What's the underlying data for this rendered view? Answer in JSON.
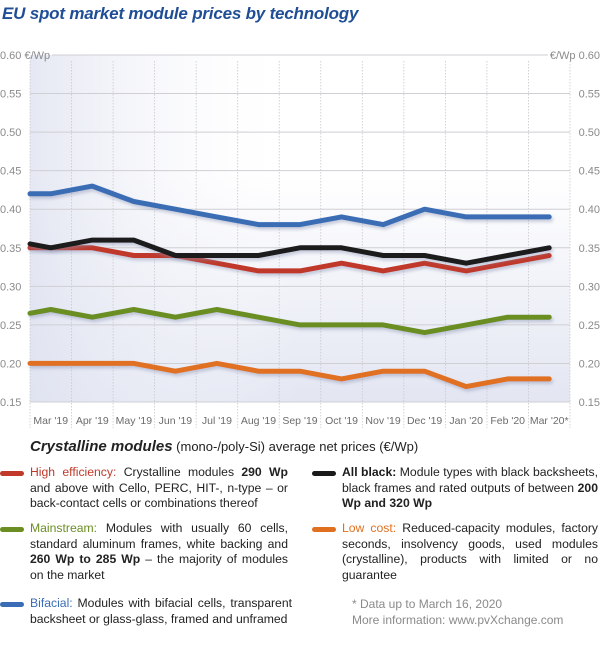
{
  "title": "EU spot market module prices  by technology",
  "chart_data": {
    "type": "line",
    "title": "EU spot market module prices  by technology",
    "xlabel": "",
    "ylabel": "€/Wp",
    "y_unit_left": "€/Wp",
    "y_unit_right": "€/Wp",
    "ylim": [
      0.15,
      0.6
    ],
    "yticks": [
      "0.60",
      "0.55",
      "0.50",
      "0.45",
      "0.40",
      "0.35",
      "0.30",
      "0.25",
      "0.20",
      "0.15"
    ],
    "grid": true,
    "categories": [
      "Mar '19",
      "Apr '19",
      "May '19",
      "Jun '19",
      "Jul '19",
      "Aug '19",
      "Sep '19",
      "Oct '19",
      "Nov '19",
      "Dec '19",
      "Jan '20",
      "Feb '20",
      "Mar '20*"
    ],
    "start_values_note": "line segment from left axis edge",
    "series": [
      {
        "name": "Bifacial",
        "color": "#3a6db5",
        "start": 0.42,
        "values": [
          0.42,
          0.43,
          0.41,
          0.4,
          0.39,
          0.38,
          0.38,
          0.39,
          0.38,
          0.4,
          0.39,
          0.39,
          0.39
        ]
      },
      {
        "name": "All black",
        "color": "#1a1a1a",
        "start": 0.355,
        "values": [
          0.35,
          0.36,
          0.36,
          0.34,
          0.34,
          0.34,
          0.35,
          0.35,
          0.34,
          0.34,
          0.33,
          0.34,
          0.35
        ]
      },
      {
        "name": "High efficiency",
        "color": "#c0392b",
        "start": 0.35,
        "values": [
          0.35,
          0.35,
          0.34,
          0.34,
          0.33,
          0.32,
          0.32,
          0.33,
          0.32,
          0.33,
          0.32,
          0.33,
          0.34
        ]
      },
      {
        "name": "Mainstream",
        "color": "#6b8e23",
        "start": 0.265,
        "values": [
          0.27,
          0.26,
          0.27,
          0.26,
          0.27,
          0.26,
          0.25,
          0.25,
          0.25,
          0.24,
          0.25,
          0.26,
          0.26
        ]
      },
      {
        "name": "Low cost",
        "color": "#e07020",
        "start": 0.2,
        "values": [
          0.2,
          0.2,
          0.2,
          0.19,
          0.2,
          0.19,
          0.19,
          0.18,
          0.19,
          0.19,
          0.17,
          0.18,
          0.18
        ]
      }
    ]
  },
  "legend": {
    "heading_strong": "Crystalline modules",
    "heading_rest": " (mono-/poly-Si) average net prices (€/Wp)",
    "items": [
      {
        "name": "High efficiency:",
        "color": "#c0392b",
        "text_a": " Crystalline modules ",
        "bold": "290 Wp",
        "text_b": " and above with Cello, PERC, HIT-, n-type – or back-contact cells or combinations thereof"
      },
      {
        "name": "Mainstream:",
        "color": "#6b8e23",
        "text_a": " Modules with usually 60 cells, standard aluminum frames, white backing and ",
        "bold": "260 Wp to 285 Wp",
        "text_b": " – the majority of modules on the market"
      },
      {
        "name": "Bifacial:",
        "color": "#3a6db5",
        "text_a": " Modules with bifacial cells, transparent backsheet or glass-glass, framed and unframed",
        "bold": "",
        "text_b": ""
      },
      {
        "name": "All black:",
        "color": "#1a1a1a",
        "text_a": " Module types with black backsheets, black frames and rated outputs of between ",
        "bold": "200 Wp and 320 Wp",
        "text_b": ""
      },
      {
        "name": "Low cost:",
        "color": "#e07020",
        "text_a": " Reduced-capacity modules, factory seconds, insolvency goods, used modules (crystalline), products with limited or no guarantee",
        "bold": "",
        "text_b": ""
      }
    ]
  },
  "footnote": {
    "line1": "* Data up to March 16, 2020",
    "line2": "More information: www.pvXchange.com"
  }
}
